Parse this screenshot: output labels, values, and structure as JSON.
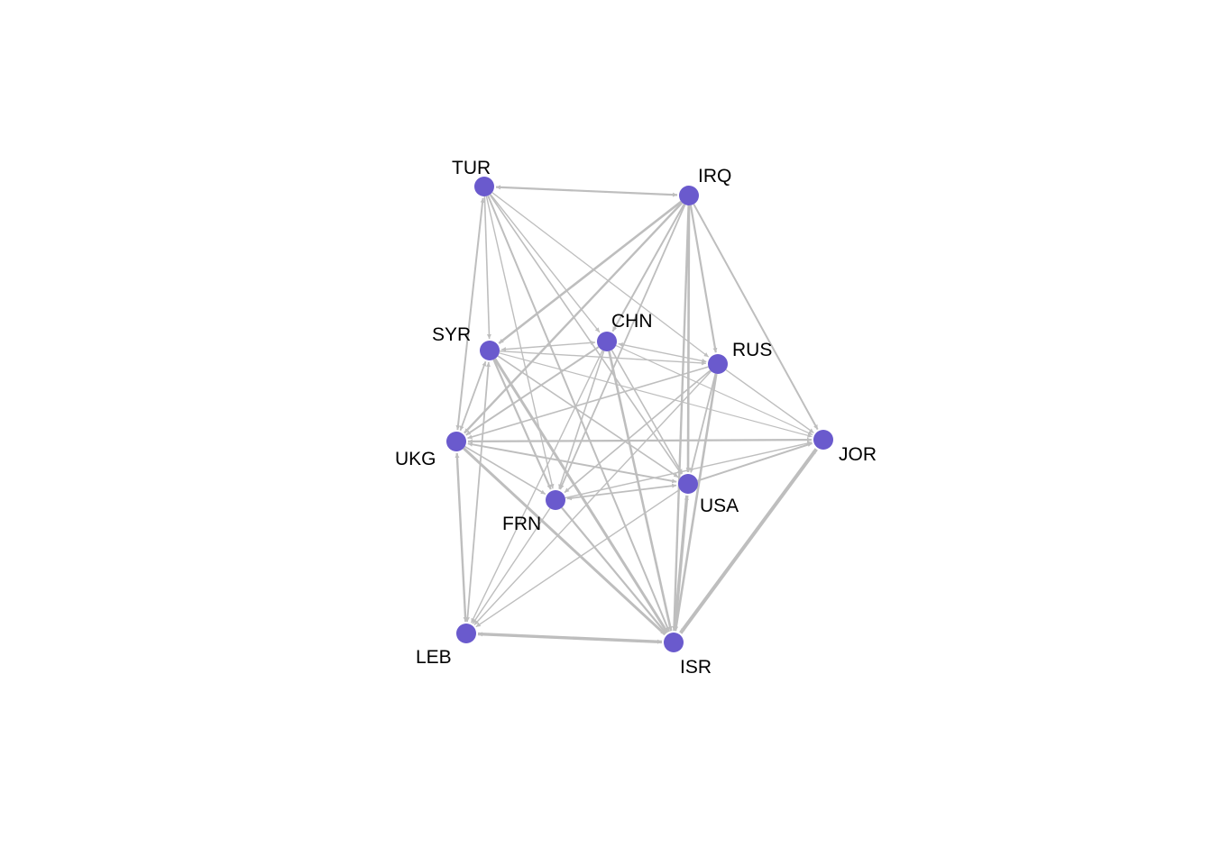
{
  "graph": {
    "node_color": "#6a5acd",
    "edge_color": "#bebebe",
    "nodes": [
      {
        "id": "TUR",
        "label": "TUR"
      },
      {
        "id": "IRQ",
        "label": "IRQ"
      },
      {
        "id": "SYR",
        "label": "SYR"
      },
      {
        "id": "CHN",
        "label": "CHN"
      },
      {
        "id": "RUS",
        "label": "RUS"
      },
      {
        "id": "UKG",
        "label": "UKG"
      },
      {
        "id": "JOR",
        "label": "JOR"
      },
      {
        "id": "FRN",
        "label": "FRN"
      },
      {
        "id": "USA",
        "label": "USA"
      },
      {
        "id": "LEB",
        "label": "LEB"
      },
      {
        "id": "ISR",
        "label": "ISR"
      }
    ],
    "edges": [
      {
        "from": "TUR",
        "to": "IRQ",
        "w": 2.2,
        "bi": true
      },
      {
        "from": "TUR",
        "to": "SYR",
        "w": 1.6
      },
      {
        "from": "TUR",
        "to": "UKG",
        "w": 2.0,
        "bi": true
      },
      {
        "from": "TUR",
        "to": "CHN",
        "w": 1.4
      },
      {
        "from": "TUR",
        "to": "RUS",
        "w": 1.3
      },
      {
        "from": "TUR",
        "to": "FRN",
        "w": 1.4
      },
      {
        "from": "TUR",
        "to": "ISR",
        "w": 2.0
      },
      {
        "from": "TUR",
        "to": "USA",
        "w": 1.6
      },
      {
        "from": "IRQ",
        "to": "SYR",
        "w": 2.6
      },
      {
        "from": "IRQ",
        "to": "CHN",
        "w": 2.0
      },
      {
        "from": "IRQ",
        "to": "RUS",
        "w": 2.2
      },
      {
        "from": "IRQ",
        "to": "UKG",
        "w": 2.4
      },
      {
        "from": "IRQ",
        "to": "USA",
        "w": 2.6
      },
      {
        "from": "IRQ",
        "to": "FRN",
        "w": 1.8
      },
      {
        "from": "IRQ",
        "to": "ISR",
        "w": 2.4
      },
      {
        "from": "IRQ",
        "to": "JOR",
        "w": 2.0
      },
      {
        "from": "SYR",
        "to": "CHN",
        "w": 1.4,
        "bi": true
      },
      {
        "from": "SYR",
        "to": "RUS",
        "w": 1.4
      },
      {
        "from": "SYR",
        "to": "UKG",
        "w": 1.8,
        "bi": true
      },
      {
        "from": "SYR",
        "to": "FRN",
        "w": 2.2
      },
      {
        "from": "SYR",
        "to": "USA",
        "w": 1.6
      },
      {
        "from": "SYR",
        "to": "ISR",
        "w": 3.0
      },
      {
        "from": "SYR",
        "to": "LEB",
        "w": 1.8,
        "bi": true
      },
      {
        "from": "SYR",
        "to": "JOR",
        "w": 1.2
      },
      {
        "from": "CHN",
        "to": "RUS",
        "w": 1.4,
        "bi": true
      },
      {
        "from": "CHN",
        "to": "UKG",
        "w": 2.0
      },
      {
        "from": "CHN",
        "to": "FRN",
        "w": 1.6
      },
      {
        "from": "CHN",
        "to": "USA",
        "w": 1.6
      },
      {
        "from": "CHN",
        "to": "ISR",
        "w": 2.6
      },
      {
        "from": "CHN",
        "to": "LEB",
        "w": 1.4
      },
      {
        "from": "CHN",
        "to": "JOR",
        "w": 1.2
      },
      {
        "from": "RUS",
        "to": "UKG",
        "w": 1.6
      },
      {
        "from": "RUS",
        "to": "FRN",
        "w": 1.6
      },
      {
        "from": "RUS",
        "to": "USA",
        "w": 1.8
      },
      {
        "from": "RUS",
        "to": "ISR",
        "w": 2.6
      },
      {
        "from": "RUS",
        "to": "LEB",
        "w": 1.4
      },
      {
        "from": "RUS",
        "to": "JOR",
        "w": 1.4
      },
      {
        "from": "UKG",
        "to": "JOR",
        "w": 2.2,
        "bi": true
      },
      {
        "from": "UKG",
        "to": "FRN",
        "w": 1.6
      },
      {
        "from": "UKG",
        "to": "USA",
        "w": 2.0,
        "bi": true
      },
      {
        "from": "UKG",
        "to": "ISR",
        "w": 3.0
      },
      {
        "from": "UKG",
        "to": "LEB",
        "w": 2.4,
        "bi": true
      },
      {
        "from": "FRN",
        "to": "USA",
        "w": 1.8,
        "bi": true
      },
      {
        "from": "FRN",
        "to": "ISR",
        "w": 2.2
      },
      {
        "from": "FRN",
        "to": "LEB",
        "w": 1.4
      },
      {
        "from": "FRN",
        "to": "JOR",
        "w": 1.4
      },
      {
        "from": "USA",
        "to": "ISR",
        "w": 3.4,
        "bi": true
      },
      {
        "from": "USA",
        "to": "LEB",
        "w": 1.4
      },
      {
        "from": "USA",
        "to": "JOR",
        "w": 2.0
      },
      {
        "from": "JOR",
        "to": "ISR",
        "w": 4.0,
        "bi": true
      },
      {
        "from": "LEB",
        "to": "ISR",
        "w": 3.4,
        "bi": true
      }
    ]
  }
}
